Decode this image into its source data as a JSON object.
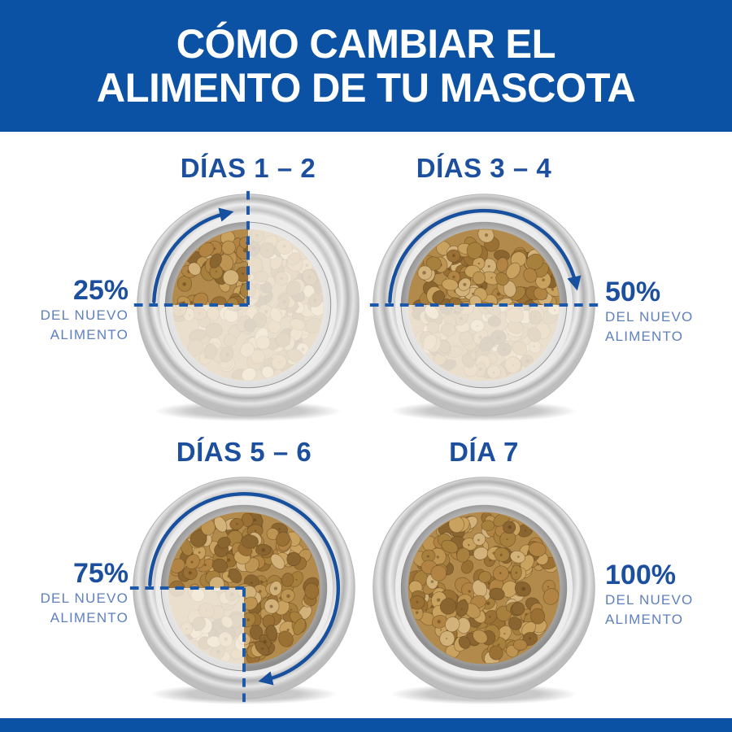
{
  "header": {
    "title_line1": "CÓMO CAMBIAR EL",
    "title_line2": "ALIMENTO DE TU MASCOTA"
  },
  "figures": [
    {
      "title": "DÍAS 1 – 2",
      "percent": "25%",
      "percent_value": 25,
      "sub_lines": [
        "DEL NUEVO",
        "ALIMENTO"
      ],
      "label_side": "left"
    },
    {
      "title": "DÍAS 3 – 4",
      "percent": "50%",
      "percent_value": 50,
      "sub_lines": [
        "DEL NUEVO",
        "ALIMENTO"
      ],
      "label_side": "right"
    },
    {
      "title": "DÍAS 5 – 6",
      "percent": "75%",
      "percent_value": 75,
      "sub_lines": [
        "DEL NUEVO",
        "ALIMENTO"
      ],
      "label_side": "left"
    },
    {
      "title": "DÍA 7",
      "percent": "100%",
      "percent_value": 100,
      "sub_lines": [
        "DEL NUEVO",
        "ALIMENTO"
      ],
      "label_side": "right"
    }
  ],
  "colors": {
    "banner_blue": "#0B52A4",
    "title_blue": "#1D4F9F",
    "sub_blue": "#5F80BE",
    "dash_blue": "#1A58AC",
    "arrow_blue": "#17509E"
  }
}
